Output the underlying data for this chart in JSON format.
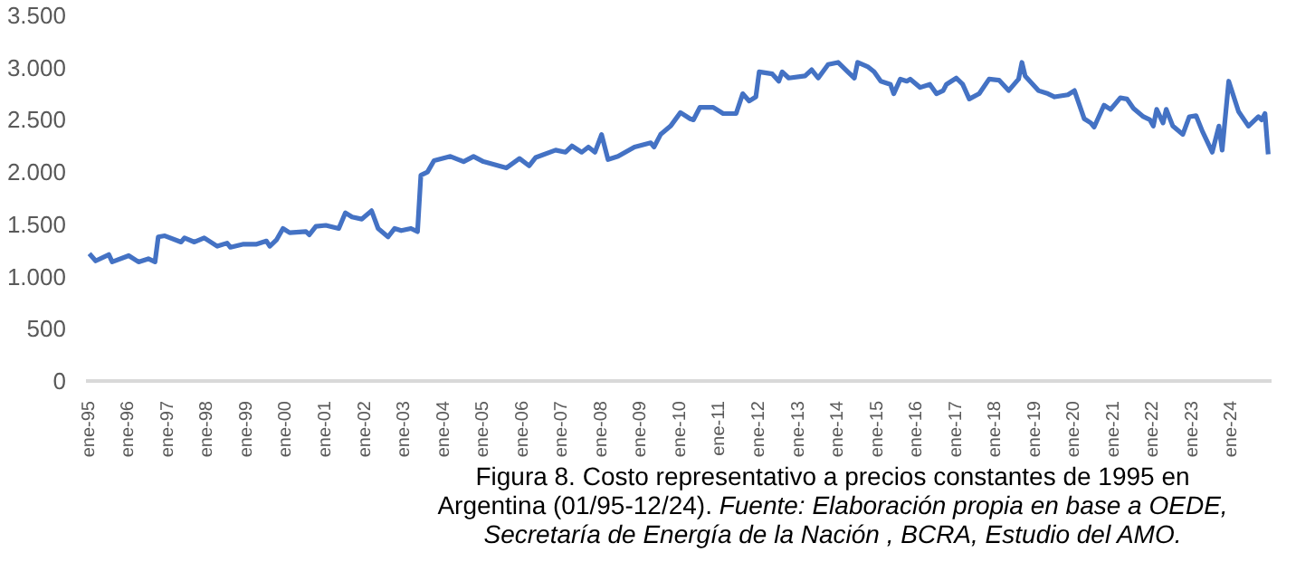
{
  "chart_data": {
    "type": "line",
    "title": "Figura 8. Costo representativo a precios constantes de 1995 en Argentina (01/95-12/24).",
    "annotations": [
      "Fuente: Elaboración propia en base a OEDE, Secretaría de Energía de la Nación , BCRA, Estudio del AMO."
    ],
    "x": [
      "1995-01",
      "1995-03",
      "1995-07",
      "1995-08",
      "1996-01",
      "1996-04",
      "1996-07",
      "1996-09",
      "1996-10",
      "1996-12",
      "1997-05",
      "1997-06",
      "1997-09",
      "1997-12",
      "1998-04",
      "1998-07",
      "1998-08",
      "1998-12",
      "1999-04",
      "1999-07",
      "1999-08",
      "1999-10",
      "1999-12",
      "2000-02",
      "2000-07",
      "2000-08",
      "2000-10",
      "2001-01",
      "2001-05",
      "2001-07",
      "2001-09",
      "2001-12",
      "2002-03",
      "2002-05",
      "2002-08",
      "2002-10",
      "2002-12",
      "2003-03",
      "2003-05",
      "2003-06",
      "2003-08",
      "2003-10",
      "2004-03",
      "2004-07",
      "2004-10",
      "2005-01",
      "2005-08",
      "2005-12",
      "2006-03",
      "2006-05",
      "2006-11",
      "2007-02",
      "2007-04",
      "2007-07",
      "2007-09",
      "2007-11",
      "2008-01",
      "2008-03",
      "2008-06",
      "2008-11",
      "2009-04",
      "2009-05",
      "2009-07",
      "2009-10",
      "2010-01",
      "2010-04",
      "2010-05",
      "2010-07",
      "2010-11",
      "2011-02",
      "2011-06",
      "2011-08",
      "2011-10",
      "2011-12",
      "2012-01",
      "2012-05",
      "2012-07",
      "2012-08",
      "2012-10",
      "2013-03",
      "2013-05",
      "2013-07",
      "2013-10",
      "2014-01",
      "2014-04",
      "2014-06",
      "2014-07",
      "2014-10",
      "2014-12",
      "2015-02",
      "2015-05",
      "2015-06",
      "2015-08",
      "2015-10",
      "2015-11",
      "2016-02",
      "2016-05",
      "2016-07",
      "2016-09",
      "2016-10",
      "2017-01",
      "2017-03",
      "2017-05",
      "2017-08",
      "2017-11",
      "2018-02",
      "2018-05",
      "2018-08",
      "2018-09",
      "2018-10",
      "2019-02",
      "2019-05",
      "2019-07",
      "2019-11",
      "2020-01",
      "2020-04",
      "2020-06",
      "2020-07",
      "2020-10",
      "2020-12",
      "2021-03",
      "2021-05",
      "2021-07",
      "2021-10",
      "2021-12",
      "2022-01",
      "2022-02",
      "2022-04",
      "2022-05",
      "2022-07",
      "2022-10",
      "2022-12",
      "2023-02",
      "2023-04",
      "2023-07",
      "2023-09",
      "2023-10",
      "2023-12",
      "2024-03",
      "2024-06",
      "2024-09",
      "2024-10",
      "2024-11",
      "2024-12"
    ],
    "series": [
      {
        "color": "#4472c4",
        "values": [
          1220,
          1150,
          1210,
          1140,
          1200,
          1140,
          1170,
          1140,
          1380,
          1390,
          1330,
          1370,
          1330,
          1370,
          1290,
          1320,
          1280,
          1310,
          1310,
          1340,
          1290,
          1350,
          1460,
          1420,
          1430,
          1400,
          1480,
          1490,
          1460,
          1610,
          1570,
          1550,
          1630,
          1460,
          1380,
          1460,
          1440,
          1460,
          1430,
          1970,
          2000,
          2110,
          2150,
          2100,
          2150,
          2100,
          2040,
          2130,
          2060,
          2140,
          2210,
          2190,
          2250,
          2190,
          2240,
          2190,
          2360,
          2120,
          2150,
          2240,
          2280,
          2240,
          2360,
          2440,
          2570,
          2510,
          2500,
          2620,
          2620,
          2560,
          2560,
          2750,
          2680,
          2720,
          2960,
          2940,
          2870,
          2960,
          2900,
          2920,
          2980,
          2900,
          3030,
          3050,
          2960,
          2900,
          3050,
          3010,
          2960,
          2870,
          2840,
          2750,
          2890,
          2870,
          2890,
          2810,
          2840,
          2750,
          2780,
          2840,
          2900,
          2840,
          2700,
          2750,
          2890,
          2880,
          2780,
          2890,
          3050,
          2920,
          2780,
          2750,
          2720,
          2740,
          2780,
          2510,
          2470,
          2430,
          2640,
          2600,
          2710,
          2700,
          2610,
          2530,
          2500,
          2440,
          2600,
          2470,
          2600,
          2440,
          2360,
          2530,
          2540,
          2390,
          2190,
          2440,
          2210,
          2870,
          2580,
          2440,
          2530,
          2500,
          2560,
          2170
        ]
      }
    ],
    "xlim": [
      "1994-12",
      "2025-01"
    ],
    "xticks": [
      {
        "value": "1995-01",
        "label": "ene-95"
      },
      {
        "value": "1996-01",
        "label": "ene-96"
      },
      {
        "value": "1997-01",
        "label": "ene-97"
      },
      {
        "value": "1998-01",
        "label": "ene-98"
      },
      {
        "value": "1999-01",
        "label": "ene-99"
      },
      {
        "value": "2000-01",
        "label": "ene-00"
      },
      {
        "value": "2001-01",
        "label": "ene-01"
      },
      {
        "value": "2002-01",
        "label": "ene-02"
      },
      {
        "value": "2003-01",
        "label": "ene-03"
      },
      {
        "value": "2004-01",
        "label": "ene-04"
      },
      {
        "value": "2005-01",
        "label": "ene-05"
      },
      {
        "value": "2006-01",
        "label": "ene-06"
      },
      {
        "value": "2007-01",
        "label": "ene-07"
      },
      {
        "value": "2008-01",
        "label": "ene-08"
      },
      {
        "value": "2009-01",
        "label": "ene-09"
      },
      {
        "value": "2010-01",
        "label": "ene-10"
      },
      {
        "value": "2011-01",
        "label": "ene-11"
      },
      {
        "value": "2012-01",
        "label": "ene-12"
      },
      {
        "value": "2013-01",
        "label": "ene-13"
      },
      {
        "value": "2014-01",
        "label": "ene-14"
      },
      {
        "value": "2015-01",
        "label": "ene-15"
      },
      {
        "value": "2016-01",
        "label": "ene-16"
      },
      {
        "value": "2017-01",
        "label": "ene-17"
      },
      {
        "value": "2018-01",
        "label": "ene-18"
      },
      {
        "value": "2019-01",
        "label": "ene-19"
      },
      {
        "value": "2020-01",
        "label": "ene-20"
      },
      {
        "value": "2021-01",
        "label": "ene-21"
      },
      {
        "value": "2022-01",
        "label": "ene-22"
      },
      {
        "value": "2023-01",
        "label": "ene-23"
      },
      {
        "value": "2024-01",
        "label": "ene-24"
      }
    ],
    "ylim": [
      0,
      3500
    ],
    "yticks": [
      0,
      500,
      {
        "value": 1000,
        "label": "1.000"
      },
      {
        "value": 1500,
        "label": "1.500"
      },
      {
        "value": 2000,
        "label": "2.000"
      },
      {
        "value": 2500,
        "label": "2.500"
      },
      {
        "value": 3000,
        "label": "3.000"
      },
      {
        "value": 3500,
        "label": "3.500"
      }
    ],
    "grid": false,
    "marker": "none",
    "line_style": "solid"
  }
}
